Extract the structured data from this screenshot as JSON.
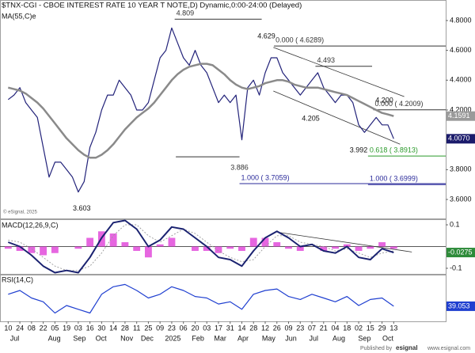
{
  "chart_data": [
    {
      "type": "line",
      "title": "$TNX-CGI - CBOE INTEREST RATE 10 YEAR T NOTE,D) Dynamic,0:00-24:00 (Delayed)",
      "copyright": "© eSignal, 2025",
      "xlim": [
        -1.4,
        74.9
      ],
      "ylim": [
        3.478,
        4.927
      ],
      "yticks": [
        {
          "value": 4.8,
          "label": "4.8000"
        },
        {
          "value": 4.6,
          "label": "4.6000"
        },
        {
          "value": 4.4,
          "label": "4.4000"
        },
        {
          "value": 4.2,
          "label": "4.2000"
        },
        {
          "value": 3.8,
          "label": "3.8000"
        },
        {
          "value": 3.6,
          "label": "3.6000"
        }
      ],
      "xticks": [
        {
          "value": 0,
          "label": "10"
        },
        {
          "value": 2,
          "label": "24"
        },
        {
          "value": 4,
          "label": "08"
        },
        {
          "value": 6,
          "label": "22"
        },
        {
          "value": 8,
          "label": "05"
        },
        {
          "value": 10,
          "label": "19"
        },
        {
          "value": 12,
          "label": "03"
        },
        {
          "value": 14,
          "label": "16"
        },
        {
          "value": 16,
          "label": "30"
        },
        {
          "value": 18,
          "label": "14"
        },
        {
          "value": 20,
          "label": "28"
        },
        {
          "value": 22,
          "label": "11"
        },
        {
          "value": 24,
          "label": "25"
        },
        {
          "value": 26,
          "label": "09"
        },
        {
          "value": 28,
          "label": "23"
        },
        {
          "value": 30,
          "label": "06"
        },
        {
          "value": 32,
          "label": "20"
        },
        {
          "value": 34,
          "label": "03"
        },
        {
          "value": 36,
          "label": "17"
        },
        {
          "value": 38,
          "label": "31"
        },
        {
          "value": 40,
          "label": "14"
        },
        {
          "value": 42,
          "label": "28"
        },
        {
          "value": 44,
          "label": "12"
        },
        {
          "value": 46,
          "label": "26"
        },
        {
          "value": 48,
          "label": "09"
        },
        {
          "value": 50,
          "label": "23"
        },
        {
          "value": 52,
          "label": "07"
        },
        {
          "value": 54,
          "label": "21"
        },
        {
          "value": 56,
          "label": "04"
        },
        {
          "value": 58,
          "label": "18"
        },
        {
          "value": 60,
          "label": "02"
        },
        {
          "value": 62,
          "label": "15"
        },
        {
          "value": 64,
          "label": "29"
        },
        {
          "value": 66,
          "label": "13"
        }
      ],
      "xticks_months": [
        {
          "value": 1.1,
          "label": "Jul"
        },
        {
          "value": 7.9,
          "label": "Aug"
        },
        {
          "value": 12.2,
          "label": "Sep"
        },
        {
          "value": 15.9,
          "label": "Oct"
        },
        {
          "value": 20.3,
          "label": "Nov"
        },
        {
          "value": 23.8,
          "label": "Dec"
        },
        {
          "value": 28.2,
          "label": "2025"
        },
        {
          "value": 32.5,
          "label": "Feb"
        },
        {
          "value": 36.3,
          "label": "Mar"
        },
        {
          "value": 40.2,
          "label": "Apr"
        },
        {
          "value": 44.6,
          "label": "May"
        },
        {
          "value": 48.4,
          "label": "Jun"
        },
        {
          "value": 52.3,
          "label": "Jul"
        },
        {
          "value": 56.6,
          "label": "Aug"
        },
        {
          "value": 61.0,
          "label": "Sep"
        },
        {
          "value": 65.0,
          "label": "Oct"
        }
      ],
      "series": [
        {
          "color": "#23237a",
          "last_label": "4.0070",
          "label_color": "#1b1b6b",
          "x": [
            0,
            1,
            2,
            3,
            4,
            5,
            6,
            7,
            8,
            9,
            10,
            11,
            12,
            13,
            14,
            15,
            16,
            17,
            18,
            19,
            20,
            21,
            22,
            23,
            24,
            25,
            26,
            27,
            28,
            29,
            30,
            31,
            32,
            33,
            34,
            35,
            36,
            37,
            38,
            39,
            40,
            41,
            42,
            43,
            44,
            45,
            46,
            47,
            48,
            49,
            50,
            51,
            52,
            53,
            54,
            55,
            56,
            57,
            58,
            59,
            60,
            61,
            62,
            63,
            64,
            65,
            66
          ],
          "values": [
            4.27,
            4.3,
            4.35,
            4.25,
            4.2,
            4.15,
            3.95,
            3.75,
            3.85,
            3.85,
            3.8,
            3.75,
            3.65,
            3.72,
            3.95,
            4.05,
            4.2,
            4.3,
            4.3,
            4.4,
            4.35,
            4.3,
            4.2,
            4.2,
            4.25,
            4.4,
            4.55,
            4.6,
            4.75,
            4.65,
            4.55,
            4.5,
            4.6,
            4.5,
            4.45,
            4.35,
            4.25,
            4.3,
            4.25,
            4.3,
            4.0,
            4.35,
            4.4,
            4.3,
            4.45,
            4.55,
            4.55,
            4.45,
            4.4,
            4.35,
            4.3,
            4.35,
            4.4,
            4.45,
            4.35,
            4.3,
            4.25,
            4.3,
            4.3,
            4.25,
            4.1,
            4.05,
            4.1,
            4.15,
            4.1,
            4.1,
            4.007
          ]
        },
        {
          "name": "MA(55,C)e",
          "color": "#8a8a8a",
          "label_color": "#9a9a9a",
          "x": [
            0,
            1,
            2,
            3,
            4,
            5,
            6,
            7,
            8,
            9,
            10,
            11,
            12,
            13,
            14,
            15,
            16,
            17,
            18,
            19,
            20,
            21,
            22,
            23,
            24,
            25,
            26,
            27,
            28,
            29,
            30,
            31,
            32,
            33,
            34,
            35,
            36,
            37,
            38,
            39,
            40,
            41,
            42,
            43,
            44,
            45,
            46,
            47,
            48,
            49,
            50,
            51,
            52,
            53,
            54,
            55,
            56,
            57,
            58,
            59,
            60,
            61,
            62,
            63,
            64,
            65,
            66
          ],
          "values": [
            4.35,
            4.34,
            4.33,
            4.31,
            4.28,
            4.25,
            4.21,
            4.16,
            4.11,
            4.06,
            4.01,
            3.97,
            3.93,
            3.9,
            3.88,
            3.88,
            3.9,
            3.93,
            3.97,
            4.02,
            4.07,
            4.11,
            4.15,
            4.18,
            4.21,
            4.25,
            4.3,
            4.35,
            4.4,
            4.44,
            4.47,
            4.49,
            4.5,
            4.51,
            4.51,
            4.5,
            4.47,
            4.44,
            4.4,
            4.37,
            4.35,
            4.34,
            4.35,
            4.36,
            4.38,
            4.39,
            4.4,
            4.4,
            4.39,
            4.37,
            4.36,
            4.35,
            4.35,
            4.35,
            4.34,
            4.33,
            4.32,
            4.31,
            4.3,
            4.28,
            4.26,
            4.24,
            4.22,
            4.2,
            4.18,
            4.17,
            4.1591
          ]
        }
      ],
      "levels": [
        {
          "text": "4.809",
          "value": 4.809,
          "from": 28.5,
          "to": 43.4,
          "color": "#333333",
          "placement": "start-above"
        },
        {
          "text": "0.000 ( 4.6289)",
          "value": 4.6289,
          "from": 45.5,
          "to": 74.9,
          "color": "#333333",
          "placement": "start-above"
        },
        {
          "text": "4.493",
          "value": 4.493,
          "from": 52.6,
          "to": 62.3,
          "color": "#333333",
          "placement": "start-above"
        },
        {
          "text": "0.000 ( 4.2009)",
          "value": 4.2009,
          "from": 62.5,
          "to": 74.9,
          "color": "#333333",
          "placement": "start-above"
        },
        {
          "text": "0.618 ( 3.8913)",
          "value": 3.8913,
          "from": 61.6,
          "to": 74.9,
          "color": "#2a9a2a",
          "placement": "start-above"
        },
        {
          "text": "3.886",
          "value": 3.886,
          "from": 28.7,
          "to": 39.6,
          "color": "#333333",
          "placement": "end-below"
        },
        {
          "text": "1.000 ( 3.7059)",
          "value": 3.7059,
          "from": 39.6,
          "to": 74.9,
          "color": "#2a2a9a",
          "placement": "start-above"
        },
        {
          "text": "1.000 ( 3.6999)",
          "value": 3.6999,
          "from": 61.6,
          "to": 74.9,
          "color": "#2a2a9a",
          "placement": "start-above"
        }
      ],
      "point_labels": [
        {
          "text": "3.603",
          "value": 3.603,
          "x": 12.6,
          "placement": "below"
        },
        {
          "text": "4.629",
          "value": 4.629,
          "x": 44.2,
          "placement": "above"
        },
        {
          "text": "4.205",
          "value": 4.205,
          "x": 51.8,
          "placement": "below"
        },
        {
          "text": "4.200",
          "value": 4.2,
          "x": 64.4,
          "placement": "above"
        },
        {
          "text": "3.992",
          "value": 3.992,
          "x": 60.0,
          "placement": "below"
        }
      ],
      "trend_lines": [
        {
          "x": [
            45.4,
            67.8
          ],
          "values": [
            4.62,
            4.29
          ]
        },
        {
          "x": [
            45.4,
            67.1
          ],
          "values": [
            4.327,
            3.97
          ]
        }
      ]
    },
    {
      "type": "line",
      "title": "MACD(12,26,9,C)",
      "ylim": [
        -0.122,
        0.122
      ],
      "yticks": [
        0.1,
        -0.1
      ],
      "series": [
        {
          "kind": "bar",
          "color": "#e040d8",
          "x": [
            0,
            2,
            4,
            6,
            8,
            10,
            12,
            14,
            16,
            18,
            20,
            22,
            24,
            26,
            28,
            30,
            32,
            34,
            36,
            38,
            40,
            42,
            44,
            46,
            48,
            50,
            52,
            54,
            56,
            58,
            60,
            62,
            64,
            66
          ],
          "values": [
            -0.01,
            -0.02,
            -0.03,
            -0.04,
            -0.03,
            0.0,
            -0.01,
            0.04,
            0.07,
            0.06,
            0.02,
            -0.02,
            -0.05,
            0.01,
            0.04,
            0.0,
            -0.02,
            -0.02,
            -0.03,
            -0.01,
            -0.02,
            0.04,
            0.04,
            0.02,
            -0.01,
            -0.02,
            0.0,
            -0.02,
            -0.01,
            0.01,
            -0.02,
            -0.01,
            0.02,
            -0.01
          ]
        },
        {
          "kind": "line",
          "color": "#9a9a9a",
          "dashed": true,
          "x": [
            0,
            2,
            4,
            6,
            8,
            10,
            12,
            14,
            16,
            18,
            20,
            22,
            24,
            26,
            28,
            30,
            32,
            34,
            36,
            38,
            40,
            42,
            44,
            46,
            48,
            50,
            52,
            54,
            56,
            58,
            60,
            62,
            64,
            66
          ],
          "values": [
            0.03,
            0.02,
            -0.01,
            -0.05,
            -0.09,
            -0.11,
            -0.11,
            -0.09,
            -0.03,
            0.05,
            0.1,
            0.1,
            0.05,
            0.02,
            0.05,
            0.08,
            0.06,
            0.02,
            -0.02,
            -0.05,
            -0.07,
            -0.06,
            0.0,
            0.05,
            0.05,
            0.02,
            0.01,
            0.0,
            -0.02,
            -0.01,
            -0.03,
            -0.05,
            -0.03,
            -0.02
          ]
        },
        {
          "kind": "line",
          "color": "#1a2270",
          "label_color": "#2e8b3a",
          "x": [
            0,
            2,
            4,
            6,
            8,
            10,
            12,
            14,
            16,
            18,
            20,
            22,
            24,
            26,
            28,
            30,
            32,
            34,
            36,
            38,
            40,
            42,
            44,
            46,
            48,
            50,
            52,
            54,
            56,
            58,
            60,
            62,
            64,
            66
          ],
          "values": [
            0.02,
            0.0,
            -0.04,
            -0.09,
            -0.12,
            -0.11,
            -0.12,
            -0.05,
            0.04,
            0.11,
            0.12,
            0.08,
            0.0,
            0.03,
            0.09,
            0.08,
            0.04,
            0.0,
            -0.05,
            -0.06,
            -0.09,
            -0.02,
            0.04,
            0.07,
            0.04,
            0.0,
            0.01,
            -0.02,
            -0.03,
            0.0,
            -0.05,
            -0.06,
            -0.01,
            -0.0275
          ]
        }
      ],
      "trend_lines": [
        {
          "x": [
            46.1,
            69.1
          ],
          "values": [
            0.066,
            -0.025
          ]
        }
      ]
    },
    {
      "type": "line",
      "title": "RSI(14,C)",
      "ylim": [
        20,
        80
      ],
      "series": [
        {
          "kind": "line",
          "color": "#1f3fd0",
          "label_color": "#1f3fd0",
          "x": [
            0,
            2,
            4,
            6,
            8,
            10,
            12,
            14,
            16,
            18,
            20,
            22,
            24,
            26,
            28,
            30,
            32,
            34,
            36,
            38,
            40,
            42,
            44,
            46,
            48,
            50,
            52,
            54,
            56,
            58,
            60,
            62,
            64,
            66
          ],
          "values": [
            55,
            60,
            50,
            45,
            30,
            40,
            35,
            30,
            55,
            65,
            68,
            60,
            50,
            55,
            65,
            60,
            52,
            50,
            42,
            45,
            35,
            55,
            60,
            62,
            52,
            48,
            55,
            50,
            45,
            52,
            40,
            48,
            50,
            39.053
          ]
        }
      ]
    }
  ],
  "footer": {
    "published": "Published by",
    "logo": "esignal",
    "url": "www.esignal.com"
  }
}
